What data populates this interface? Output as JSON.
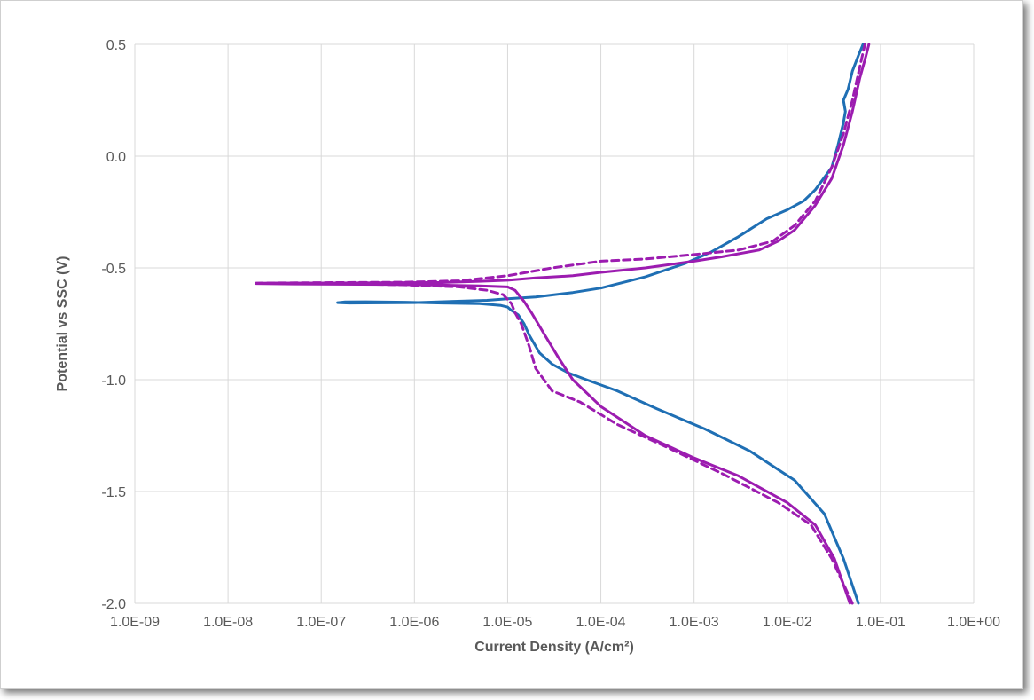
{
  "chart_data": {
    "type": "line",
    "title": "",
    "xlabel": "Current Density (A/cm²)",
    "ylabel": "Potential vs SSC (V)",
    "xscale": "log",
    "xlim": [
      1e-09,
      1
    ],
    "ylim": [
      -2.0,
      0.5
    ],
    "grid": true,
    "legend": "none",
    "x_tick_values": [
      1e-09,
      1e-08,
      1e-07,
      1e-06,
      1e-05,
      0.0001,
      0.001,
      0.01,
      0.1,
      1
    ],
    "x_tick_labels": [
      "1.0E-09",
      "1.0E-08",
      "1.0E-07",
      "1.0E-06",
      "1.0E-05",
      "1.0E-04",
      "1.0E-03",
      "1.0E-02",
      "1.0E-01",
      "1.0E+00"
    ],
    "y_tick_values": [
      0.5,
      0.0,
      -0.5,
      -1.0,
      -1.5,
      -2.0
    ],
    "y_tick_labels": [
      "0.5",
      "0.0",
      "-0.5",
      "-1.0",
      "-1.5",
      "-2.0"
    ],
    "series": [
      {
        "color": "#1f6fb4",
        "dash": "solid",
        "points": [
          [
            0.058,
            -2.0
          ],
          [
            0.04,
            -1.8
          ],
          [
            0.025,
            -1.6
          ],
          [
            0.012,
            -1.45
          ],
          [
            0.004,
            -1.32
          ],
          [
            0.0013,
            -1.22
          ],
          [
            0.0004,
            -1.13
          ],
          [
            0.00015,
            -1.05
          ],
          [
            7e-05,
            -1.0
          ],
          [
            4.5e-05,
            -0.97
          ],
          [
            3e-05,
            -0.93
          ],
          [
            2.2e-05,
            -0.88
          ],
          [
            1.7e-05,
            -0.8
          ],
          [
            1.5e-05,
            -0.75
          ],
          [
            1.3e-05,
            -0.71
          ],
          [
            1.1e-05,
            -0.69
          ],
          [
            1e-05,
            -0.675
          ],
          [
            8.5e-06,
            -0.668
          ],
          [
            5e-06,
            -0.66
          ],
          [
            2e-06,
            -0.657
          ],
          [
            8e-07,
            -0.653
          ],
          [
            3e-07,
            -0.651
          ],
          [
            1.8e-07,
            -0.652
          ],
          [
            1.5e-07,
            -0.655
          ],
          [
            2e-07,
            -0.657
          ],
          [
            1e-06,
            -0.655
          ],
          [
            6e-06,
            -0.645
          ],
          [
            1e-05,
            -0.638
          ],
          [
            2e-05,
            -0.63
          ],
          [
            5e-05,
            -0.61
          ],
          [
            0.0001,
            -0.59
          ],
          [
            0.0003,
            -0.54
          ],
          [
            0.0008,
            -0.48
          ],
          [
            0.0015,
            -0.43
          ],
          [
            0.003,
            -0.36
          ],
          [
            0.006,
            -0.28
          ],
          [
            0.01,
            -0.24
          ],
          [
            0.015,
            -0.2
          ],
          [
            0.02,
            -0.15
          ],
          [
            0.03,
            -0.05
          ],
          [
            0.035,
            0.05
          ],
          [
            0.04,
            0.15
          ],
          [
            0.042,
            0.2
          ],
          [
            0.04,
            0.25
          ],
          [
            0.045,
            0.3
          ],
          [
            0.05,
            0.38
          ],
          [
            0.058,
            0.45
          ],
          [
            0.065,
            0.5
          ]
        ]
      },
      {
        "color": "#9c1cb0",
        "dash": "solid",
        "points": [
          [
            0.047,
            -2.0
          ],
          [
            0.032,
            -1.8
          ],
          [
            0.02,
            -1.65
          ],
          [
            0.01,
            -1.55
          ],
          [
            0.003,
            -1.43
          ],
          [
            0.001,
            -1.35
          ],
          [
            0.0003,
            -1.25
          ],
          [
            0.0001,
            -1.12
          ],
          [
            5e-05,
            -1.0
          ],
          [
            3.5e-05,
            -0.9
          ],
          [
            2.5e-05,
            -0.8
          ],
          [
            1.8e-05,
            -0.7
          ],
          [
            1.5e-05,
            -0.65
          ],
          [
            1.2e-05,
            -0.6
          ],
          [
            1e-05,
            -0.585
          ],
          [
            5e-06,
            -0.58
          ],
          [
            2e-06,
            -0.577
          ],
          [
            5e-07,
            -0.574
          ],
          [
            5e-08,
            -0.572
          ],
          [
            2e-08,
            -0.57
          ],
          [
            3e-08,
            -0.568
          ],
          [
            3e-07,
            -0.567
          ],
          [
            2e-06,
            -0.565
          ],
          [
            5e-06,
            -0.56
          ],
          [
            1e-05,
            -0.555
          ],
          [
            2e-05,
            -0.545
          ],
          [
            5e-05,
            -0.535
          ],
          [
            0.0001,
            -0.52
          ],
          [
            0.0003,
            -0.5
          ],
          [
            0.001,
            -0.47
          ],
          [
            0.002,
            -0.45
          ],
          [
            0.005,
            -0.42
          ],
          [
            0.008,
            -0.38
          ],
          [
            0.012,
            -0.33
          ],
          [
            0.02,
            -0.22
          ],
          [
            0.03,
            -0.1
          ],
          [
            0.04,
            0.05
          ],
          [
            0.05,
            0.2
          ],
          [
            0.06,
            0.35
          ],
          [
            0.07,
            0.45
          ],
          [
            0.075,
            0.5
          ]
        ]
      },
      {
        "color": "#9c1cb0",
        "dash": "dashed",
        "points": [
          [
            0.05,
            -2.0
          ],
          [
            0.03,
            -1.8
          ],
          [
            0.018,
            -1.65
          ],
          [
            0.008,
            -1.55
          ],
          [
            0.002,
            -1.42
          ],
          [
            0.0005,
            -1.3
          ],
          [
            0.00015,
            -1.2
          ],
          [
            6e-05,
            -1.1
          ],
          [
            3e-05,
            -1.05
          ],
          [
            2e-05,
            -0.95
          ],
          [
            1.7e-05,
            -0.85
          ],
          [
            1.4e-05,
            -0.75
          ],
          [
            1.2e-05,
            -0.7
          ],
          [
            1.1e-05,
            -0.66
          ],
          [
            9e-06,
            -0.62
          ],
          [
            6e-06,
            -0.6
          ],
          [
            3e-06,
            -0.585
          ],
          [
            7e-07,
            -0.575
          ],
          [
            1e-07,
            -0.57
          ],
          [
            2e-08,
            -0.568
          ],
          [
            1e-07,
            -0.566
          ],
          [
            8e-07,
            -0.564
          ],
          [
            3e-06,
            -0.558
          ],
          [
            5e-06,
            -0.548
          ],
          [
            1e-05,
            -0.535
          ],
          [
            3e-05,
            -0.5
          ],
          [
            0.0001,
            -0.47
          ],
          [
            0.0003,
            -0.46
          ],
          [
            0.001,
            -0.44
          ],
          [
            0.003,
            -0.42
          ],
          [
            0.007,
            -0.38
          ],
          [
            0.012,
            -0.31
          ],
          [
            0.02,
            -0.2
          ],
          [
            0.03,
            -0.05
          ],
          [
            0.04,
            0.1
          ],
          [
            0.05,
            0.25
          ],
          [
            0.06,
            0.4
          ],
          [
            0.068,
            0.5
          ]
        ]
      }
    ]
  }
}
